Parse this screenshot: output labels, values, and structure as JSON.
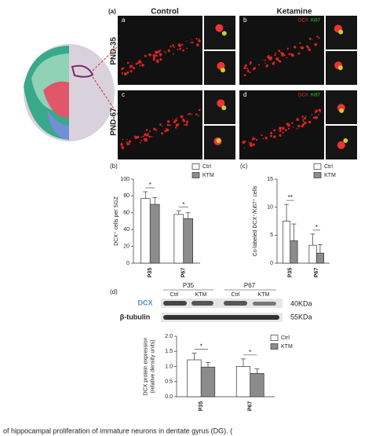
{
  "panel_a": {
    "label": "(a)",
    "conditions": [
      "Control",
      "Ketamine"
    ],
    "ages": [
      "PND-35",
      "PND-67"
    ],
    "image_letters": [
      "a",
      "b",
      "c",
      "d"
    ],
    "stain_dcx": "DCX",
    "stain_ki67": "Ki67"
  },
  "blot": {
    "label": "(d)",
    "groups": [
      "P35",
      "P67"
    ],
    "lanes": [
      "Ctrl",
      "KTM",
      "Ctrl",
      "KTM"
    ],
    "proteins": [
      "DCX",
      "β-tubulin"
    ],
    "sizes": [
      "40KDa",
      "55KDa"
    ]
  },
  "chart_data": [
    {
      "type": "bar",
      "label": "(b)",
      "ylabel": [
        "DCX⁺ cells per SGZ"
      ],
      "categories": [
        "P35",
        "P67"
      ],
      "series": [
        {
          "name": "Ctrl",
          "color": "#ffffff",
          "values": [
            77,
            58
          ],
          "errors": [
            8,
            4
          ]
        },
        {
          "name": "KTM",
          "color": "#8c8c8c",
          "values": [
            70,
            53
          ],
          "errors": [
            8,
            7
          ]
        }
      ],
      "significance": [
        "*",
        "*"
      ],
      "ylim": [
        0,
        100
      ],
      "yticks": [
        0,
        20,
        40,
        60,
        80,
        100
      ]
    },
    {
      "type": "bar",
      "label": "(c)",
      "ylabel": [
        "Co-labeled DCX⁺/Ki67⁺ cells"
      ],
      "categories": [
        "P35",
        "P67"
      ],
      "series": [
        {
          "name": "Ctrl",
          "color": "#ffffff",
          "values": [
            7.5,
            3.2
          ],
          "errors": [
            3,
            2
          ]
        },
        {
          "name": "KTM",
          "color": "#8c8c8c",
          "values": [
            4,
            1.8
          ],
          "errors": [
            3,
            1.5
          ]
        }
      ],
      "significance": [
        "**",
        "*"
      ],
      "ylim": [
        0,
        15
      ],
      "yticks": [
        0,
        5,
        10,
        15
      ]
    },
    {
      "type": "bar",
      "label": "",
      "ylabel": [
        "DCX protein expression",
        "(relative density units)"
      ],
      "categories": [
        "P35",
        "P67"
      ],
      "series": [
        {
          "name": "Ctrl",
          "color": "#ffffff",
          "values": [
            1.22,
            1.0
          ],
          "errors": [
            0.22,
            0.25
          ]
        },
        {
          "name": "KTM",
          "color": "#8c8c8c",
          "values": [
            0.98,
            0.77
          ],
          "errors": [
            0.15,
            0.15
          ]
        }
      ],
      "significance": [
        "*",
        "*"
      ],
      "ylim": [
        0,
        2
      ],
      "yticks": [
        {
          "value": 0,
          "label": "0.0"
        },
        0.5,
        {
          "value": 1,
          "label": "1.0"
        },
        1.5,
        {
          "value": 2,
          "label": "2.0"
        }
      ]
    }
  ],
  "caption": "of hippocampal proliferation of immature neurons in dentate gyrus (DG). ("
}
